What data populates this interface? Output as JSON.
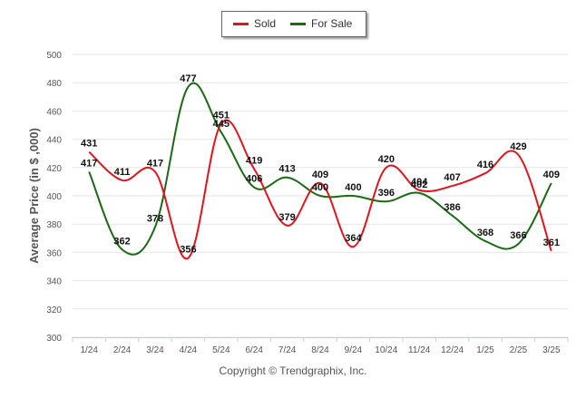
{
  "legend": {
    "sold": "Sold",
    "for_sale": "For Sale"
  },
  "credit": "Copyright © Trendgraphix, Inc.",
  "chart_data": {
    "type": "line",
    "ylabel": "Average Price (in $ ,000)",
    "xlabel": "",
    "ylim": [
      300,
      500
    ],
    "yticks": [
      300,
      320,
      340,
      360,
      380,
      400,
      420,
      440,
      460,
      480,
      500
    ],
    "grid": true,
    "legend_position": "top-center",
    "categories": [
      "1/24",
      "2/24",
      "3/24",
      "4/24",
      "5/24",
      "6/24",
      "7/24",
      "8/24",
      "9/24",
      "10/24",
      "11/24",
      "12/24",
      "1/25",
      "2/25",
      "3/25"
    ],
    "series": [
      {
        "name": "Sold",
        "color": "#e0141c",
        "values": [
          431,
          411,
          417,
          356,
          451,
          419,
          379,
          409,
          364,
          420,
          404,
          407,
          416,
          429,
          361
        ],
        "labels": [
          "431",
          "411",
          "417",
          "356",
          "451",
          "419",
          "379",
          "409",
          "364",
          "420",
          "404",
          "407",
          "416",
          "429",
          "361"
        ]
      },
      {
        "name": "For Sale",
        "color": "#1a6a14",
        "values": [
          417,
          362,
          378,
          477,
          445,
          406,
          413,
          400,
          400,
          396,
          402,
          386,
          368,
          366,
          409
        ],
        "labels": [
          "417",
          "362",
          "378",
          "477",
          "445",
          "406",
          "413",
          "400",
          "400",
          "396",
          "402",
          "386",
          "368",
          "366",
          "409"
        ]
      }
    ]
  }
}
